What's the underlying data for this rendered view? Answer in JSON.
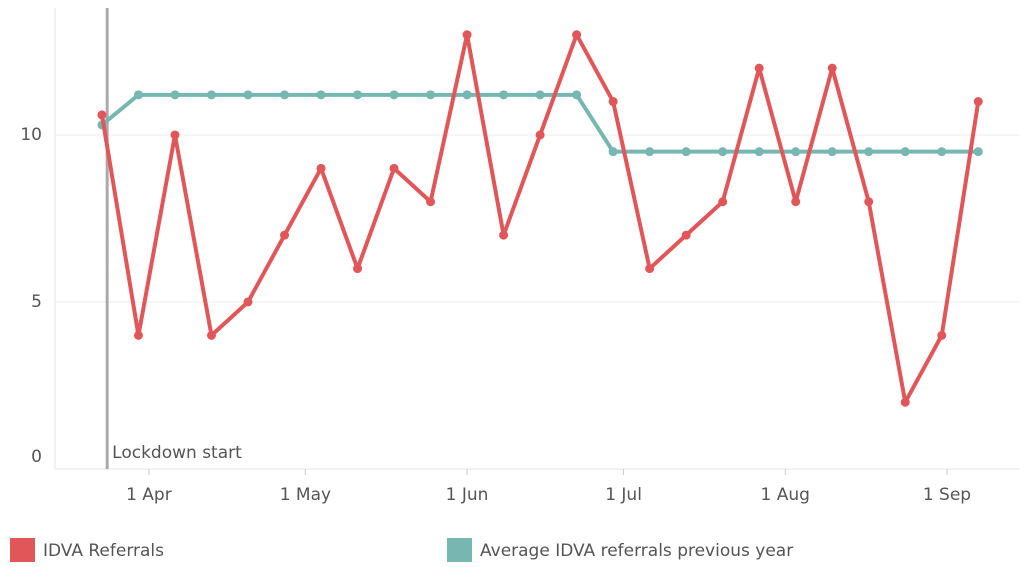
{
  "chart_data": {
    "type": "line",
    "x": [
      "03-23",
      "03-30",
      "04-06",
      "04-13",
      "04-20",
      "04-27",
      "05-04",
      "05-11",
      "05-18",
      "05-25",
      "06-01",
      "06-08",
      "06-15",
      "06-22",
      "06-29",
      "07-06",
      "07-13",
      "07-20",
      "07-27",
      "08-03",
      "08-10",
      "08-17",
      "08-24",
      "08-31",
      "09-07"
    ],
    "series": [
      {
        "name": "IDVA Referrals",
        "color": "#e15759",
        "values": [
          10.6,
          4,
          10,
          4,
          5,
          7,
          9,
          6,
          9,
          8,
          13,
          7,
          10,
          13,
          11,
          6,
          7,
          8,
          12,
          8,
          12,
          8,
          2,
          4,
          11
        ]
      },
      {
        "name": "Average IDVA referrals previous year",
        "color": "#76b7b2",
        "values": [
          10.3,
          11.2,
          11.2,
          11.2,
          11.2,
          11.2,
          11.2,
          11.2,
          11.2,
          11.2,
          11.2,
          11.2,
          11.2,
          11.2,
          9.5,
          9.5,
          9.5,
          9.5,
          9.5,
          9.5,
          9.5,
          9.5,
          9.5,
          9.5,
          9.5
        ]
      }
    ],
    "xlim": [
      "03-14",
      "09-15"
    ],
    "xticks": [
      {
        "value": "04-01",
        "label": "1 Apr"
      },
      {
        "value": "05-01",
        "label": "1 May"
      },
      {
        "value": "06-01",
        "label": "1 Jun"
      },
      {
        "value": "07-01",
        "label": "1 Jul"
      },
      {
        "value": "08-01",
        "label": "1 Aug"
      },
      {
        "value": "09-01",
        "label": "1 Sep"
      }
    ],
    "ylim": [
      0,
      13.8
    ],
    "yticks": [
      0,
      5,
      10
    ],
    "grid": true,
    "legend": "bottom",
    "reference_line": {
      "x": "03-24",
      "label": "Lockdown start",
      "color": "#aaaaaa"
    }
  }
}
